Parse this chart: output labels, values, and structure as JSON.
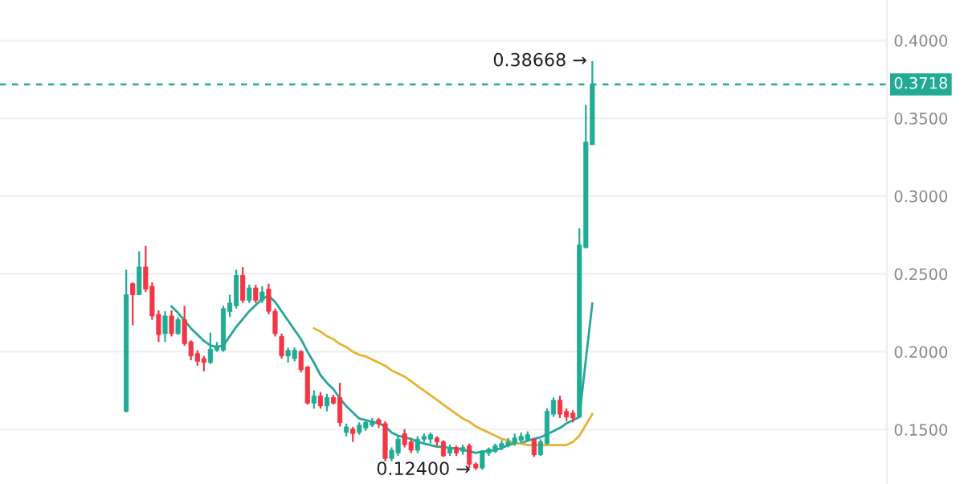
{
  "chart_data": {
    "type": "candlestick",
    "categories": [
      null,
      null,
      null,
      null,
      null,
      null,
      null,
      null,
      null,
      null,
      null,
      null,
      null,
      null,
      null,
      null,
      null,
      null,
      null,
      null,
      null,
      null,
      null,
      null,
      null,
      null,
      null,
      null,
      null,
      null,
      null,
      null,
      null,
      null,
      null,
      null,
      null,
      null,
      null,
      null,
      null,
      null,
      null,
      null,
      null,
      null,
      null,
      null,
      null,
      null,
      null,
      null,
      null,
      null,
      null,
      null,
      null,
      null,
      null,
      null,
      null,
      null,
      null,
      null,
      null,
      null,
      null,
      null,
      null,
      null,
      null,
      null,
      null,
      null,
      null,
      null,
      null,
      null,
      null,
      null,
      null,
      null,
      null,
      null,
      null,
      null,
      null,
      null,
      null,
      null,
      null,
      null,
      null,
      null,
      null,
      null,
      null,
      null,
      null,
      null,
      null,
      null,
      null,
      null,
      null,
      null,
      null,
      null,
      null,
      null,
      null,
      null,
      null,
      null,
      null,
      null,
      null,
      null,
      null,
      null,
      null,
      null,
      null,
      null,
      null,
      null,
      null,
      null,
      null,
      null,
      null,
      null,
      null,
      null,
      null,
      null,
      null
    ],
    "ohlc": [
      null,
      null,
      null,
      null,
      null,
      null,
      null,
      null,
      null,
      null,
      null,
      null,
      null,
      null,
      null,
      null,
      null,
      null,
      null,
      [
        0.1617,
        0.2527,
        0.161,
        0.2366
      ],
      [
        0.2438,
        0.2445,
        0.217,
        0.2366
      ],
      [
        0.2366,
        0.2645,
        0.2366,
        0.2545
      ],
      [
        0.2545,
        0.268,
        0.2384,
        0.2402
      ],
      [
        0.242,
        0.2445,
        0.2205,
        0.223
      ],
      [
        0.224,
        0.2266,
        0.2063,
        0.211
      ],
      [
        0.2116,
        0.226,
        0.2063,
        0.223
      ],
      [
        0.223,
        0.2266,
        0.2098,
        0.2116
      ],
      [
        0.2116,
        0.2223,
        0.2109,
        0.2206
      ],
      [
        0.2206,
        0.2295,
        0.2038,
        0.2052
      ],
      [
        0.2063,
        0.2073,
        0.1945,
        0.1973
      ],
      [
        0.1988,
        0.2009,
        0.191,
        0.1938
      ],
      [
        0.1956,
        0.1973,
        0.1874,
        0.1931
      ],
      [
        0.1931,
        0.2123,
        0.192,
        0.2016
      ],
      [
        0.2009,
        0.2063,
        0.2,
        0.2038
      ],
      [
        0.2009,
        0.2295,
        0.2,
        0.2277
      ],
      [
        0.2259,
        0.2366,
        0.2223,
        0.2313
      ],
      [
        0.2295,
        0.2527,
        0.2277,
        0.2491
      ],
      [
        0.2491,
        0.2545,
        0.2313,
        0.233
      ],
      [
        0.233,
        0.243,
        0.2313,
        0.241
      ],
      [
        0.241,
        0.243,
        0.2313,
        0.233
      ],
      [
        0.233,
        0.242,
        0.2313,
        0.2384
      ],
      [
        0.2402,
        0.2438,
        0.224,
        0.226
      ],
      [
        0.226,
        0.2277,
        0.2098,
        0.2116
      ],
      [
        0.2098,
        0.2116,
        0.1956,
        0.1973
      ],
      [
        0.1973,
        0.2027,
        0.193,
        0.2009
      ],
      [
        0.1956,
        0.2027,
        0.1938,
        0.2009
      ],
      [
        0.2002,
        0.2009,
        0.1866,
        0.1884
      ],
      [
        0.1902,
        0.1909,
        0.166,
        0.167
      ],
      [
        0.167,
        0.1752,
        0.1634,
        0.1716
      ],
      [
        0.1716,
        0.1741,
        0.1634,
        0.1652
      ],
      [
        0.1652,
        0.173,
        0.1617,
        0.1706
      ],
      [
        0.1706,
        0.1724,
        0.166,
        0.167
      ],
      [
        0.1706,
        0.18,
        0.152,
        0.1545
      ],
      [
        0.1481,
        0.1538,
        0.1456,
        0.1517
      ],
      [
        0.1503,
        0.1517,
        0.1421,
        0.1474
      ],
      [
        0.1481,
        0.1546,
        0.1467,
        0.1528
      ],
      [
        0.151,
        0.1563,
        0.1492,
        0.1546
      ],
      [
        0.1528,
        0.1574,
        0.1517,
        0.1553
      ],
      [
        0.1563,
        0.1574,
        0.151,
        0.1538
      ],
      [
        0.1538,
        0.1553,
        0.1296,
        0.1314
      ],
      [
        0.1314,
        0.1385,
        0.1296,
        0.1367
      ],
      [
        0.1349,
        0.1456,
        0.1331,
        0.1438
      ],
      [
        0.1474,
        0.1503,
        0.1385,
        0.1403
      ],
      [
        0.1421,
        0.1438,
        0.1349,
        0.1367
      ],
      [
        0.1367,
        0.1456,
        0.1349,
        0.1438
      ],
      [
        0.1438,
        0.1474,
        0.142,
        0.1456
      ],
      [
        0.1438,
        0.1481,
        0.141,
        0.1467
      ],
      [
        0.1446,
        0.1456,
        0.1396,
        0.1421
      ],
      [
        0.1421,
        0.1431,
        0.1324,
        0.1331
      ],
      [
        0.1349,
        0.1403,
        0.1331,
        0.1385
      ],
      [
        0.1385,
        0.1396,
        0.1331,
        0.1349
      ],
      [
        0.136,
        0.1403,
        0.1338,
        0.1385
      ],
      [
        0.1396,
        0.141,
        0.1253,
        0.1278
      ],
      [
        0.1278,
        0.1289,
        0.124,
        0.1253
      ],
      [
        0.1253,
        0.1367,
        0.1242,
        0.136
      ],
      [
        0.1349,
        0.1385,
        0.1331,
        0.1374
      ],
      [
        0.136,
        0.141,
        0.1349,
        0.1396
      ],
      [
        0.1385,
        0.1431,
        0.1367,
        0.141
      ],
      [
        0.1396,
        0.1446,
        0.1385,
        0.1421
      ],
      [
        0.141,
        0.1474,
        0.1396,
        0.1446
      ],
      [
        0.1431,
        0.1481,
        0.141,
        0.1456
      ],
      [
        0.1438,
        0.1488,
        0.1421,
        0.1467
      ],
      [
        0.1438,
        0.1446,
        0.1324,
        0.1338
      ],
      [
        0.1338,
        0.1438,
        0.1331,
        0.1421
      ],
      [
        0.141,
        0.1635,
        0.1403,
        0.1617
      ],
      [
        0.1599,
        0.1706,
        0.1581,
        0.1688
      ],
      [
        0.1688,
        0.1717,
        0.1574,
        0.1599
      ],
      [
        0.1617,
        0.1635,
        0.1553,
        0.1581
      ],
      [
        0.1606,
        0.1624,
        0.1546,
        0.1574
      ],
      [
        0.158,
        0.2793,
        0.158,
        0.2686
      ],
      [
        0.2669,
        0.3586,
        0.2665,
        0.3347
      ],
      [
        0.333,
        0.38668,
        0.333,
        0.3718
      ],
      null,
      null,
      null,
      null,
      null,
      null,
      null,
      null,
      null,
      null,
      null,
      null,
      null,
      null,
      null,
      null,
      null,
      null,
      null,
      null,
      null,
      null,
      null,
      null,
      null,
      null,
      null,
      null,
      null,
      null,
      null,
      null,
      null,
      null,
      null,
      null,
      null,
      null,
      null,
      null,
      null,
      null,
      null,
      null,
      null
    ],
    "series": [
      {
        "type": "line",
        "color": "#26a69a",
        "values": [
          null,
          null,
          null,
          null,
          null,
          null,
          null,
          null,
          null,
          null,
          null,
          null,
          null,
          null,
          null,
          null,
          null,
          null,
          null,
          null,
          null,
          null,
          null,
          null,
          null,
          null,
          0.229,
          0.225,
          0.22,
          0.215,
          0.211,
          0.207,
          0.204,
          0.203,
          0.204,
          0.21,
          0.216,
          0.221,
          0.226,
          0.23,
          0.234,
          0.236,
          0.232,
          0.226,
          0.22,
          0.214,
          0.208,
          0.2,
          0.193,
          0.185,
          0.18,
          0.176,
          0.17,
          0.165,
          0.161,
          0.157,
          0.156,
          0.155,
          0.154,
          0.152,
          0.148,
          0.146,
          0.145,
          0.144,
          0.142,
          0.141,
          0.14,
          0.139,
          0.139,
          0.138,
          0.138,
          0.137,
          0.136,
          0.135,
          0.136,
          0.136,
          0.137,
          0.138,
          0.14,
          0.141,
          0.141,
          0.143,
          0.144,
          0.145,
          0.147,
          0.149,
          0.151,
          0.154,
          0.156,
          0.158,
          0.195,
          0.231,
          null,
          null,
          null,
          null,
          null,
          null,
          null,
          null,
          null,
          null,
          null,
          null,
          null,
          null,
          null,
          null,
          null,
          null,
          null,
          null,
          null,
          null,
          null,
          null,
          null,
          null,
          null,
          null,
          null,
          null,
          null,
          null,
          null,
          null,
          null,
          null,
          null,
          null,
          null,
          null,
          null,
          null,
          null,
          null,
          null
        ]
      },
      {
        "type": "line",
        "color": "#e8b330",
        "values": [
          null,
          null,
          null,
          null,
          null,
          null,
          null,
          null,
          null,
          null,
          null,
          null,
          null,
          null,
          null,
          null,
          null,
          null,
          null,
          null,
          null,
          null,
          null,
          null,
          null,
          null,
          null,
          null,
          null,
          null,
          null,
          null,
          null,
          null,
          null,
          null,
          null,
          null,
          null,
          null,
          null,
          null,
          null,
          null,
          null,
          null,
          null,
          null,
          0.215,
          0.213,
          0.21,
          0.208,
          0.205,
          0.203,
          0.2,
          0.198,
          0.197,
          0.195,
          0.193,
          0.191,
          0.188,
          0.186,
          0.184,
          0.181,
          0.178,
          0.175,
          0.172,
          0.169,
          0.166,
          0.163,
          0.16,
          0.157,
          0.155,
          0.152,
          0.15,
          0.148,
          0.146,
          0.144,
          0.143,
          0.141,
          0.141,
          0.14,
          0.14,
          0.14,
          0.14,
          0.14,
          0.14,
          0.14,
          0.142,
          0.146,
          0.153,
          0.16,
          null,
          null,
          null,
          null,
          null,
          null,
          null,
          null,
          null,
          null,
          null,
          null,
          null,
          null,
          null,
          null,
          null,
          null,
          null,
          null,
          null,
          null,
          null,
          null,
          null,
          null,
          null,
          null,
          null,
          null,
          null,
          null,
          null,
          null,
          null,
          null,
          null,
          null,
          null,
          null,
          null,
          null,
          null,
          null,
          null
        ]
      }
    ],
    "ylim": [
      0.115,
      0.426
    ],
    "yticks": [
      {
        "value": 0.15,
        "label": "0.1500"
      },
      {
        "value": 0.2,
        "label": "0.2000"
      },
      {
        "value": 0.25,
        "label": "0.2500"
      },
      {
        "value": 0.3,
        "label": "0.3000"
      },
      {
        "value": 0.35,
        "label": "0.3500"
      },
      {
        "value": 0.4,
        "label": "0.4000"
      }
    ],
    "tick_labels": "y",
    "grid": "y",
    "ref_lines": [
      {
        "axis": "y",
        "value": 0.3718,
        "label": "0.3718",
        "color": "#22ab94",
        "line_style": "dashed"
      }
    ],
    "annotations": [
      "0.38668 →",
      "0.12400 →"
    ]
  }
}
